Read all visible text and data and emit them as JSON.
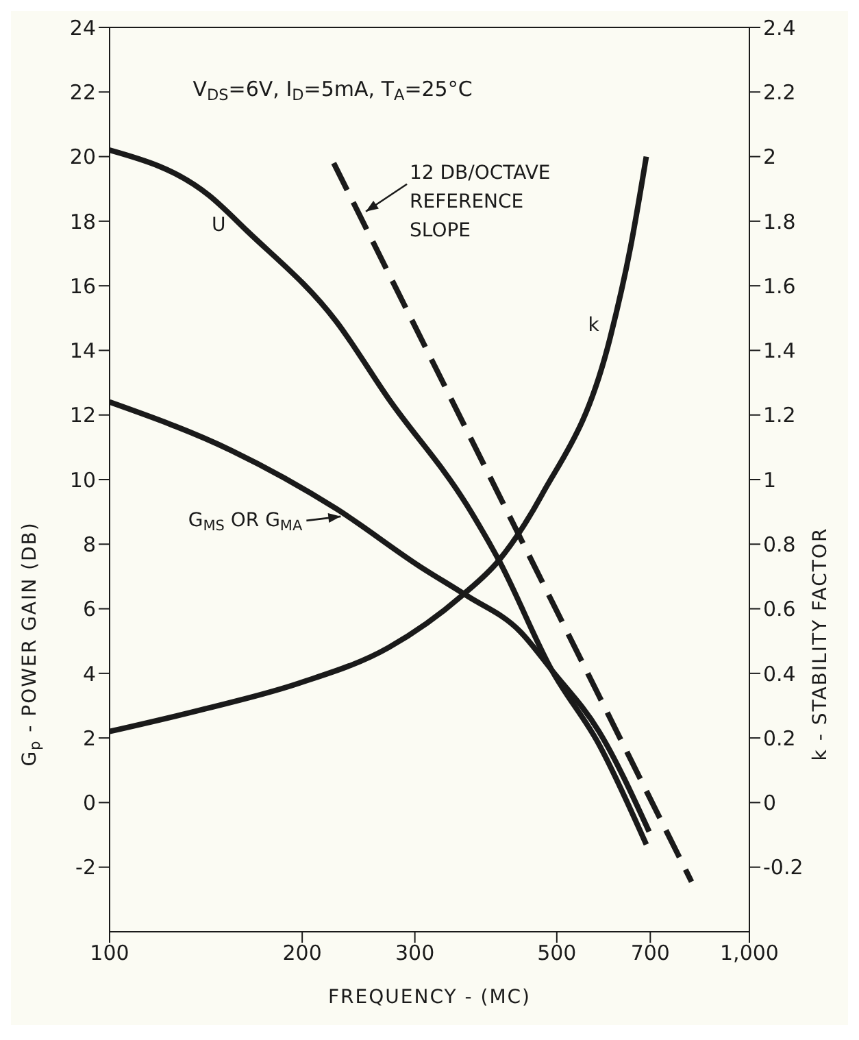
{
  "chart_data": {
    "type": "line",
    "xlabel": "FREQUENCY - (MC)",
    "ylabel": "G$_{p}$ - POWER GAIN (DB)",
    "y2label": "k - STABILITY FACTOR",
    "annotations": [
      "V$_{DS}$=6V,  I$_{D}$=5mA,  T$_{A}$=25°C",
      {
        "text": "12 DB/OCTAVE REFERENCE SLOPE",
        "x": 249,
        "y": 18.3
      },
      {
        "text": "G$_{MS}$ OR G$_{MA}$",
        "x": 232,
        "y": 8.9
      }
    ],
    "log": "x",
    "marker": "none",
    "xlim": [
      100,
      1000
    ],
    "xticks": [
      100,
      200,
      300,
      500,
      700,
      {
        "value": 1000,
        "label": "1,000"
      }
    ],
    "ylim": [
      -4,
      24
    ],
    "yticks": [
      -2,
      0,
      2,
      4,
      6,
      8,
      10,
      12,
      14,
      16,
      18,
      20,
      22,
      24
    ],
    "y2lim": [
      -0.4,
      2.4
    ],
    "y2ticks": [
      -0.2,
      0,
      0.2,
      0.4,
      0.6,
      0.8,
      1,
      1.2,
      1.4,
      1.6,
      1.8,
      2,
      2.2,
      2.4
    ],
    "series": [
      {
        "name": "U",
        "color": "#1a1a1a",
        "line_style": "solid",
        "x": [
          100,
          143,
          164,
          226,
          273,
          362,
          406,
          491,
          582,
          690
        ],
        "values": [
          20.2,
          18.8,
          17.7,
          14.9,
          12.5,
          9.2,
          7.5,
          4.1,
          1.8,
          -1.3
        ]
      },
      {
        "color": "#1a1a1a",
        "line_style": "solid",
        "x": [
          100,
          155,
          226,
          306,
          362,
          438,
          491,
          582,
          697
        ],
        "values": [
          12.4,
          10.9,
          9.1,
          7.3,
          6.4,
          5.3,
          4.1,
          2.2,
          -0.9
        ]
      },
      {
        "name": "k",
        "color": "#1a1a1a",
        "line_style": "solid",
        "axis": "y2",
        "x": [
          100,
          141,
          198,
          273,
          355,
          406,
          473,
          606,
          652,
          690
        ],
        "values": [
          0.22,
          0.29,
          0.37,
          0.48,
          0.64,
          0.75,
          0.95,
          1.44,
          1.72,
          2.0
        ]
      },
      {
        "color": "#1a1a1a",
        "line_style": "dashed",
        "x": [
          224,
          812
        ],
        "values": [
          19.8,
          -2.45
        ]
      }
    ]
  }
}
